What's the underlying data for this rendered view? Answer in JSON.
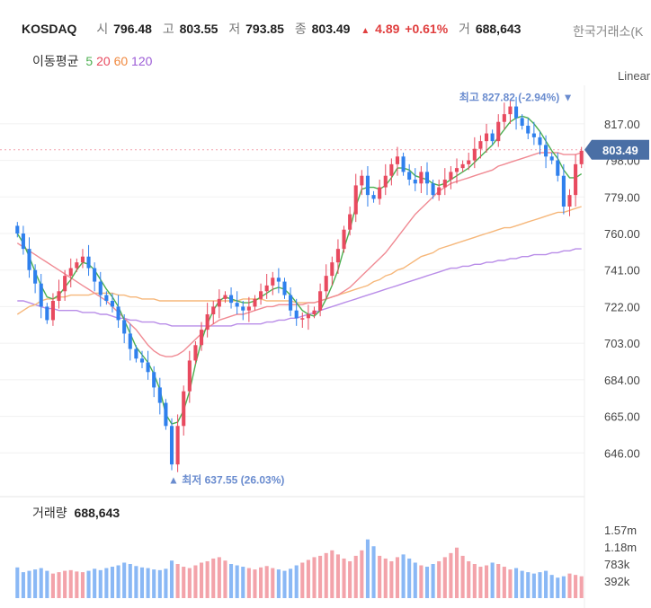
{
  "header": {
    "symbol": "KOSDAQ",
    "open_label": "시",
    "open": "796.48",
    "high_label": "고",
    "high": "803.55",
    "low_label": "저",
    "low": "793.85",
    "close_label": "종",
    "close": "803.49",
    "change": "4.89",
    "change_pct": "+0.61%",
    "volume_label": "거",
    "volume": "688,643",
    "exchange": "한국거래소(K",
    "scale": "Linear"
  },
  "ma_legend": {
    "title": "이동평균",
    "items": [
      {
        "period": "5",
        "color": "#4caf50"
      },
      {
        "period": "20",
        "color": "#e84a5f"
      },
      {
        "period": "60",
        "color": "#f0883e"
      },
      {
        "period": "120",
        "color": "#9c5cd6"
      }
    ]
  },
  "volume_panel": {
    "title": "거래량",
    "value": "688,643"
  },
  "chart_data": {
    "type": "candlestick",
    "ylim": [
      627,
      837
    ],
    "y_ticks": [
      "817.00",
      "798.00",
      "779.00",
      "760.00",
      "741.00",
      "722.00",
      "703.00",
      "684.00",
      "665.00",
      "646.00"
    ],
    "last_price_label": "803.49",
    "last_price": 803.49,
    "high_annotation": {
      "text": "최고 827.82 (-2.94%)",
      "value": 827.82,
      "index": 93
    },
    "low_annotation": {
      "text": "최저 637.55 (26.03%)",
      "value": 637.55,
      "index": 26
    },
    "colors": {
      "up": "#e84a5f",
      "down": "#2f80ed",
      "ma5": "#4caf50",
      "ma20": "#f08a93",
      "ma60": "#f6b77a",
      "ma120": "#b98de8",
      "vol_up": "#f3a3aa",
      "vol_down": "#8ab8f5"
    },
    "close": [
      760,
      752,
      741,
      734,
      722,
      715,
      725,
      730,
      738,
      742,
      745,
      748,
      742,
      735,
      728,
      725,
      722,
      715,
      708,
      700,
      695,
      693,
      688,
      680,
      672,
      660,
      640,
      660,
      678,
      694,
      702,
      710,
      718,
      722,
      726,
      728,
      724,
      722,
      720,
      722,
      726,
      730,
      733,
      737,
      735,
      728,
      720,
      716,
      716,
      718,
      720,
      730,
      738,
      745,
      752,
      762,
      770,
      785,
      790,
      780,
      778,
      784,
      790,
      796,
      800,
      792,
      788,
      786,
      792,
      786,
      780,
      784,
      788,
      792,
      794,
      796,
      798,
      804,
      808,
      812,
      808,
      818,
      822,
      826,
      820,
      816,
      812,
      810,
      806,
      800,
      798,
      790,
      774,
      780,
      796,
      803
    ],
    "ma120": [
      725,
      725,
      724,
      723,
      722,
      721,
      721,
      720,
      720,
      720,
      720,
      719,
      719,
      719,
      718,
      718,
      717,
      716,
      716,
      715,
      715,
      714,
      714,
      714,
      713,
      713,
      712,
      712,
      712,
      712,
      712,
      712,
      712,
      712,
      712,
      712,
      712,
      713,
      713,
      713,
      713,
      713,
      714,
      714,
      715,
      715,
      716,
      716,
      717,
      718,
      719,
      720,
      721,
      722,
      723,
      724,
      725,
      726,
      727,
      728,
      729,
      730,
      731,
      732,
      733,
      734,
      735,
      736,
      737,
      738,
      739,
      740,
      741,
      742,
      742,
      743,
      743,
      744,
      744,
      745,
      745,
      746,
      746,
      747,
      747,
      748,
      748,
      749,
      749,
      749,
      750,
      750,
      751,
      751,
      752,
      752
    ],
    "ma60": [
      718,
      720,
      722,
      723,
      725,
      726,
      726,
      727,
      727,
      728,
      728,
      728,
      728,
      729,
      729,
      729,
      729,
      728,
      728,
      727,
      727,
      726,
      726,
      726,
      725,
      725,
      725,
      725,
      725,
      725,
      725,
      725,
      725,
      725,
      725,
      725,
      725,
      725,
      726,
      726,
      726,
      726,
      725,
      725,
      725,
      725,
      725,
      724,
      724,
      724,
      724,
      725,
      726,
      727,
      728,
      729,
      730,
      731,
      732,
      733,
      735,
      736,
      738,
      739,
      741,
      742,
      744,
      746,
      748,
      749,
      750,
      752,
      753,
      754,
      755,
      756,
      757,
      758,
      759,
      760,
      761,
      762,
      763,
      763,
      764,
      765,
      766,
      767,
      768,
      769,
      770,
      771,
      771,
      772,
      773,
      774
    ],
    "ma20": [
      755,
      753,
      751,
      749,
      747,
      745,
      743,
      741,
      739,
      737,
      735,
      733,
      731,
      729,
      727,
      725,
      722,
      719,
      716,
      713,
      710,
      706,
      702,
      699,
      697,
      696,
      696,
      697,
      699,
      702,
      705,
      708,
      711,
      713,
      715,
      716,
      717,
      718,
      718,
      719,
      720,
      721,
      722,
      722,
      723,
      723,
      723,
      723,
      723,
      724,
      724,
      725,
      726,
      727,
      728,
      730,
      732,
      735,
      738,
      741,
      744,
      747,
      750,
      754,
      758,
      762,
      766,
      770,
      773,
      776,
      779,
      782,
      784,
      786,
      787,
      788,
      789,
      790,
      791,
      792,
      793,
      795,
      796,
      797,
      798,
      799,
      800,
      801,
      802,
      802,
      802,
      802,
      801,
      801,
      801,
      802
    ],
    "ma5": [
      760,
      755,
      748,
      740,
      733,
      727,
      726,
      728,
      732,
      736,
      741,
      745,
      744,
      741,
      736,
      731,
      727,
      722,
      715,
      708,
      701,
      697,
      693,
      687,
      679,
      666,
      661,
      662,
      668,
      678,
      692,
      704,
      713,
      720,
      725,
      727,
      726,
      725,
      724,
      724,
      725,
      727,
      729,
      731,
      732,
      731,
      728,
      724,
      720,
      718,
      717,
      720,
      726,
      733,
      741,
      752,
      762,
      774,
      783,
      784,
      784,
      783,
      785,
      789,
      794,
      794,
      793,
      790,
      789,
      788,
      786,
      785,
      786,
      788,
      790,
      792,
      794,
      797,
      800,
      803,
      806,
      810,
      814,
      818,
      820,
      821,
      820,
      817,
      813,
      808,
      803,
      799,
      793,
      789,
      789,
      791
    ],
    "volume": [
      0.45,
      0.38,
      0.4,
      0.42,
      0.44,
      0.4,
      0.36,
      0.38,
      0.4,
      0.41,
      0.39,
      0.38,
      0.4,
      0.43,
      0.41,
      0.44,
      0.46,
      0.48,
      0.52,
      0.5,
      0.47,
      0.45,
      0.44,
      0.42,
      0.41,
      0.43,
      0.55,
      0.5,
      0.46,
      0.44,
      0.48,
      0.52,
      0.54,
      0.58,
      0.6,
      0.55,
      0.5,
      0.48,
      0.46,
      0.44,
      0.42,
      0.45,
      0.47,
      0.44,
      0.42,
      0.4,
      0.43,
      0.48,
      0.52,
      0.56,
      0.6,
      0.62,
      0.66,
      0.7,
      0.64,
      0.58,
      0.54,
      0.62,
      0.7,
      0.86,
      0.76,
      0.62,
      0.58,
      0.54,
      0.6,
      0.64,
      0.58,
      0.52,
      0.48,
      0.46,
      0.5,
      0.54,
      0.6,
      0.66,
      0.74,
      0.62,
      0.54,
      0.5,
      0.46,
      0.48,
      0.52,
      0.5,
      0.46,
      0.42,
      0.44,
      0.4,
      0.38,
      0.36,
      0.38,
      0.4,
      0.34,
      0.3,
      0.32,
      0.36,
      0.34,
      0.32
    ]
  }
}
